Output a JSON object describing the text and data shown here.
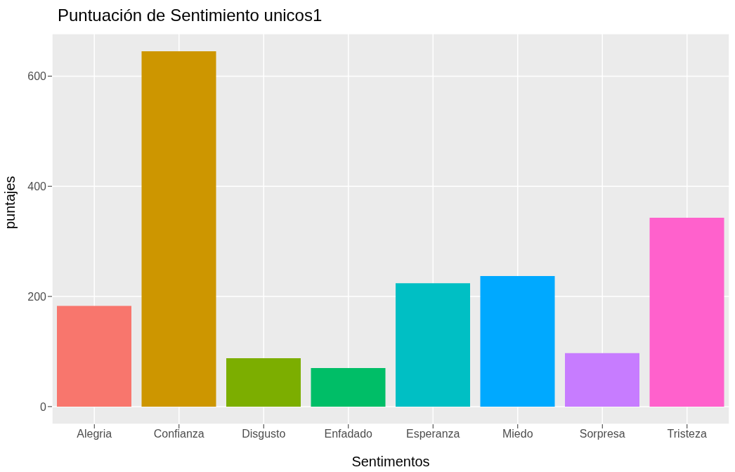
{
  "chart_data": {
    "type": "bar",
    "title": "Puntuación de Sentimiento unicos1",
    "xlabel": "Sentimentos",
    "ylabel": "puntajes",
    "categories": [
      "Alegria",
      "Confianza",
      "Disgusto",
      "Enfadado",
      "Esperanza",
      "Miedo",
      "Sorpresa",
      "Tristeza"
    ],
    "values": [
      183,
      645,
      88,
      70,
      224,
      237,
      97,
      343
    ],
    "colors": [
      "#f8766d",
      "#cd9600",
      "#7cae00",
      "#00be67",
      "#00bfc4",
      "#00a9ff",
      "#c77cff",
      "#ff61cc"
    ],
    "ylim": [
      -32,
      677
    ],
    "yticks": [
      0,
      200,
      400,
      600
    ],
    "grid": true
  }
}
